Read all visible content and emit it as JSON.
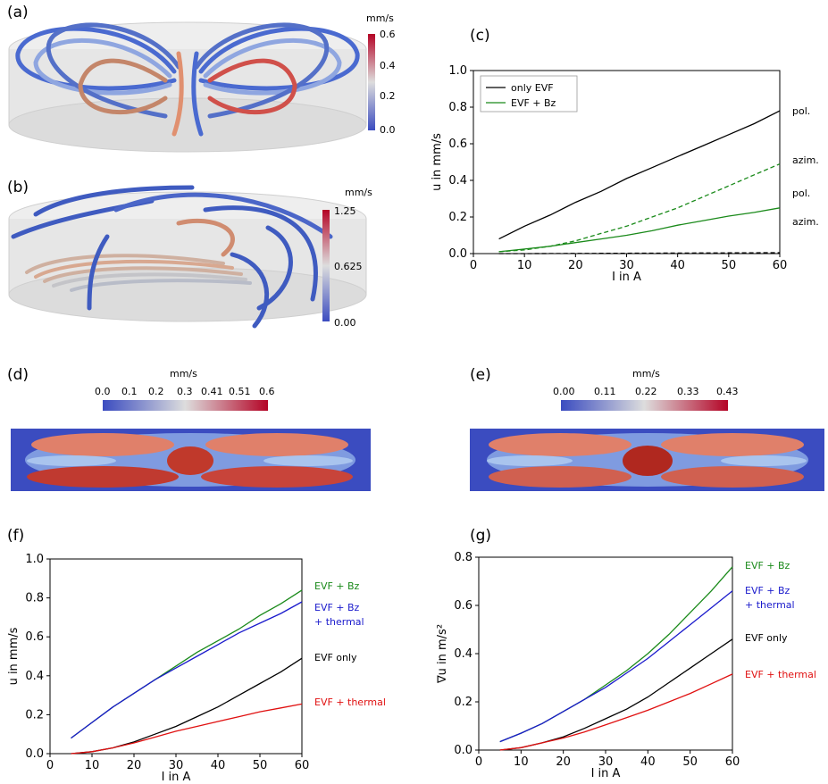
{
  "panel_labels": {
    "a": "(a)",
    "b": "(b)",
    "c": "(c)",
    "d": "(d)",
    "e": "(e)",
    "f": "(f)",
    "g": "(g)"
  },
  "colorbars": {
    "a": {
      "unit": "mm/s",
      "ticks": [
        "0.6",
        "0.4",
        "0.2",
        "0.0"
      ]
    },
    "b": {
      "unit": "mm/s",
      "ticks": [
        "1.25",
        "0.625",
        "0.00"
      ]
    },
    "d": {
      "unit": "mm/s",
      "ticks": [
        "0.0",
        "0.1",
        "0.2",
        "0.3",
        "0.41",
        "0.51",
        "0.6"
      ]
    },
    "e": {
      "unit": "mm/s",
      "ticks": [
        "0.00",
        "0.11",
        "0.22",
        "0.33",
        "0.43"
      ]
    }
  },
  "colors": {
    "black": "#000000",
    "green": "#1a8a1a",
    "blue": "#1a1acc",
    "red": "#e01010",
    "cb_low": "#3b4cc0",
    "cb_mid": "#dddddd",
    "cb_high": "#b40426"
  },
  "chart_data": [
    {
      "id": "c",
      "type": "line",
      "xlabel": "I in A",
      "ylabel": "u in mm/s",
      "xlim": [
        0,
        60
      ],
      "ylim": [
        0,
        1.0
      ],
      "xticks": [
        0,
        10,
        20,
        30,
        40,
        50,
        60
      ],
      "yticks": [
        0.0,
        0.2,
        0.4,
        0.6,
        0.8,
        1.0
      ],
      "legend": {
        "placement": "top-left",
        "entries": [
          {
            "label": "only EVF",
            "color": "#000000"
          },
          {
            "label": "EVF + Bz",
            "color": "#1a8a1a"
          }
        ]
      },
      "series": [
        {
          "name": "only EVF",
          "line_label": "pol.",
          "color": "#000000",
          "dash": false,
          "x": [
            5,
            10,
            15,
            20,
            25,
            30,
            35,
            40,
            45,
            50,
            55,
            60
          ],
          "y": [
            0.08,
            0.15,
            0.21,
            0.28,
            0.34,
            0.41,
            0.47,
            0.53,
            0.59,
            0.65,
            0.71,
            0.78
          ]
        },
        {
          "name": "only EVF",
          "line_label": "azim.",
          "color": "#000000",
          "dash": true,
          "x": [
            5,
            10,
            20,
            30,
            40,
            50,
            60
          ],
          "y": [
            0.0,
            0.0,
            0.001,
            0.002,
            0.003,
            0.004,
            0.005
          ]
        },
        {
          "name": "EVF + Bz",
          "line_label": "azim.",
          "color": "#1a8a1a",
          "dash": true,
          "x": [
            5,
            10,
            15,
            20,
            25,
            30,
            35,
            40,
            45,
            50,
            55,
            60
          ],
          "y": [
            0.01,
            0.02,
            0.04,
            0.07,
            0.11,
            0.15,
            0.2,
            0.25,
            0.31,
            0.37,
            0.43,
            0.49
          ]
        },
        {
          "name": "EVF + Bz",
          "line_label": "pol.",
          "color": "#1a8a1a",
          "dash": false,
          "x": [
            5,
            10,
            15,
            20,
            25,
            30,
            35,
            40,
            45,
            50,
            55,
            60
          ],
          "y": [
            0.01,
            0.025,
            0.04,
            0.06,
            0.08,
            0.1,
            0.125,
            0.155,
            0.18,
            0.205,
            0.225,
            0.25
          ]
        }
      ],
      "labels_order": [
        "pol.",
        "azim.",
        "pol.",
        "azim."
      ]
    },
    {
      "id": "f",
      "type": "line",
      "xlabel": "I in A",
      "ylabel": "u in mm/s",
      "xlim": [
        0,
        60
      ],
      "ylim": [
        0,
        1.0
      ],
      "xticks": [
        0,
        10,
        20,
        30,
        40,
        50,
        60
      ],
      "yticks": [
        0.0,
        0.2,
        0.4,
        0.6,
        0.8,
        1.0
      ],
      "series": [
        {
          "name": "EVF + Bz",
          "label_lines": [
            "EVF +  Bz"
          ],
          "color": "#1a8a1a",
          "x": [
            5,
            10,
            15,
            20,
            25,
            30,
            35,
            40,
            45,
            50,
            55,
            60
          ],
          "y": [
            0.08,
            0.16,
            0.24,
            0.31,
            0.38,
            0.45,
            0.52,
            0.58,
            0.64,
            0.71,
            0.77,
            0.84
          ]
        },
        {
          "name": "EVF + Bz + thermal",
          "label_lines": [
            "EVF +  Bz",
            "+ thermal"
          ],
          "color": "#1a1acc",
          "x": [
            5,
            10,
            15,
            20,
            25,
            30,
            35,
            40,
            45,
            50,
            55,
            60
          ],
          "y": [
            0.08,
            0.16,
            0.24,
            0.31,
            0.38,
            0.44,
            0.5,
            0.56,
            0.62,
            0.67,
            0.72,
            0.78
          ]
        },
        {
          "name": "EVF only",
          "label_lines": [
            "EVF only"
          ],
          "color": "#000000",
          "x": [
            5,
            10,
            15,
            20,
            25,
            30,
            35,
            40,
            45,
            50,
            55,
            60
          ],
          "y": [
            0.0,
            0.01,
            0.03,
            0.06,
            0.1,
            0.14,
            0.19,
            0.24,
            0.3,
            0.36,
            0.42,
            0.49
          ]
        },
        {
          "name": "EVF + thermal",
          "label_lines": [
            "EVF +  thermal"
          ],
          "color": "#e01010",
          "x": [
            5,
            10,
            15,
            20,
            25,
            30,
            35,
            40,
            45,
            50,
            55,
            60
          ],
          "y": [
            0.0,
            0.01,
            0.03,
            0.055,
            0.085,
            0.115,
            0.14,
            0.165,
            0.19,
            0.215,
            0.235,
            0.255
          ]
        }
      ]
    },
    {
      "id": "g",
      "type": "line",
      "xlabel": "I in A",
      "ylabel": "∇u in m/s²",
      "xlim": [
        0,
        60
      ],
      "ylim": [
        0,
        0.8
      ],
      "xticks": [
        0,
        10,
        20,
        30,
        40,
        50,
        60
      ],
      "yticks": [
        0.0,
        0.2,
        0.4,
        0.6,
        0.8
      ],
      "series": [
        {
          "name": "EVF + Bz",
          "label_lines": [
            "EVF +  Bz"
          ],
          "color": "#1a8a1a",
          "x": [
            5,
            10,
            15,
            20,
            25,
            30,
            35,
            40,
            45,
            50,
            55,
            60
          ],
          "y": [
            0.035,
            0.07,
            0.11,
            0.16,
            0.21,
            0.27,
            0.33,
            0.4,
            0.48,
            0.57,
            0.66,
            0.76
          ]
        },
        {
          "name": "EVF + Bz + thermal",
          "label_lines": [
            "EVF +  Bz",
            "+ thermal"
          ],
          "color": "#1a1acc",
          "x": [
            5,
            10,
            15,
            20,
            25,
            30,
            35,
            40,
            45,
            50,
            55,
            60
          ],
          "y": [
            0.035,
            0.07,
            0.11,
            0.16,
            0.21,
            0.26,
            0.32,
            0.38,
            0.45,
            0.52,
            0.59,
            0.66
          ]
        },
        {
          "name": "EVF only",
          "label_lines": [
            "EVF only"
          ],
          "color": "#000000",
          "x": [
            5,
            10,
            15,
            20,
            25,
            30,
            35,
            40,
            45,
            50,
            55,
            60
          ],
          "y": [
            0.0,
            0.01,
            0.03,
            0.055,
            0.09,
            0.13,
            0.17,
            0.22,
            0.28,
            0.34,
            0.4,
            0.46
          ]
        },
        {
          "name": "EVF + thermal",
          "label_lines": [
            "EVF +  thermal"
          ],
          "color": "#e01010",
          "x": [
            5,
            10,
            15,
            20,
            25,
            30,
            35,
            40,
            45,
            50,
            55,
            60
          ],
          "y": [
            0.0,
            0.01,
            0.03,
            0.05,
            0.075,
            0.105,
            0.135,
            0.165,
            0.2,
            0.235,
            0.275,
            0.315
          ]
        }
      ]
    }
  ]
}
